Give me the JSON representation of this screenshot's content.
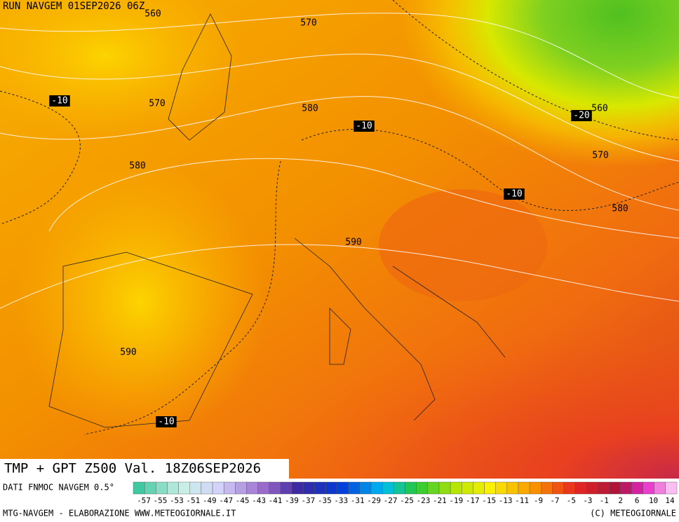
{
  "header": "RUN NAVGEM 01SEP2026 06Z",
  "map": {
    "contour_labels": [
      "560",
      "570",
      "570",
      "580",
      "580",
      "590",
      "590",
      "560",
      "570",
      "580",
      "-10",
      "-10",
      "-20",
      "-10",
      "-10"
    ]
  },
  "title": "TMP + GPT Z500 Val. 18Z06SEP2026",
  "legend": {
    "source": "DATI FNMOC NAVGEM 0.5°",
    "scale_labels": [
      "-57",
      "-55",
      "-53",
      "-51",
      "-49",
      "-47",
      "-45",
      "-43",
      "-41",
      "-39",
      "-37",
      "-35",
      "-33",
      "-31",
      "-29",
      "-27",
      "-25",
      "-23",
      "-21",
      "-19",
      "-17",
      "-15",
      "-13",
      "-11",
      "-9",
      "-7",
      "-5",
      "-3",
      "-1",
      "2",
      "6",
      "10",
      "14"
    ]
  },
  "footer": {
    "left": "MTG-NAVGEM - ELABORAZIONE WWW.METEOGIORNALE.IT",
    "right": "(C) METEOGIORNALE"
  }
}
